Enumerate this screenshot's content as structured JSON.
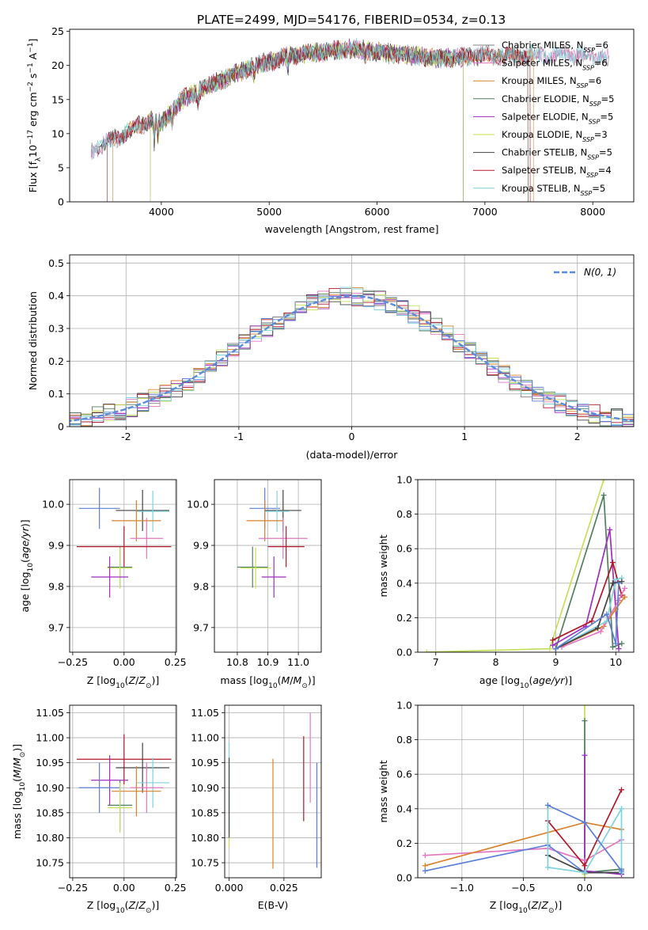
{
  "figure_title": "PLATE=2499, MJD=54176, FIBERID=0534, z=0.13",
  "colors": {
    "Chabrier MILES": "#808080",
    "Salpeter MILES": "#e377c2",
    "Kroupa MILES": "#d9822b",
    "Chabrier ELODIE": "#4f7f5f",
    "Salpeter ELODIE": "#a02cc0",
    "Kroupa ELODIE": "#c5e05a",
    "Chabrier STELIB": "#444444",
    "Salpeter STELIB": "#b2182b",
    "Kroupa STELIB": "#7fd3dc",
    "extra": "#5b7fd9",
    "normal": "#5b8bd9"
  },
  "chart_data": [
    {
      "id": "spectrum",
      "type": "line",
      "xlabel": "wavelength [Angstrom, rest frame]",
      "ylabel": "Flux [f_λ 10^-17 erg cm^-2 s^-1 A^-1]",
      "xlim": [
        3150,
        8380
      ],
      "ylim": [
        0,
        25.3
      ],
      "xticks": [
        4000,
        5000,
        6000,
        7000,
        8000
      ],
      "yticks": [
        0,
        5,
        10,
        15,
        20,
        25
      ],
      "grid": false,
      "legend_position": "right",
      "continuum": [
        [
          3350,
          7.5
        ],
        [
          3600,
          9.5
        ],
        [
          3900,
          12.0
        ],
        [
          4000,
          11.5
        ],
        [
          4200,
          15.0
        ],
        [
          4500,
          17.5
        ],
        [
          4800,
          19.5
        ],
        [
          5000,
          20.5
        ],
        [
          5200,
          21.5
        ],
        [
          5500,
          22.0
        ],
        [
          5800,
          22.5
        ],
        [
          6000,
          22.0
        ],
        [
          6300,
          21.5
        ],
        [
          6600,
          21.0
        ],
        [
          7000,
          21.5
        ],
        [
          7500,
          21.5
        ],
        [
          8000,
          21.5
        ],
        [
          8150,
          21.0
        ]
      ],
      "series": [
        {
          "name": "Chabrier MILES, N_SSP=6",
          "color_key": "Chabrier MILES",
          "start": 3350,
          "end": 8150
        },
        {
          "name": "Salpeter MILES, N_SSP=6",
          "color_key": "Salpeter MILES",
          "start": 3350,
          "end": 8150
        },
        {
          "name": "Kroupa MILES, N_SSP=6",
          "color_key": "Kroupa MILES",
          "start": 3550,
          "end": 7450
        },
        {
          "name": "Chabrier ELODIE, N_SSP=5",
          "color_key": "Chabrier ELODIE",
          "start": 3900,
          "end": 6800
        },
        {
          "name": "Salpeter ELODIE, N_SSP=5",
          "color_key": "Salpeter ELODIE",
          "start": 3900,
          "end": 6800
        },
        {
          "name": "Kroupa ELODIE, N_SSP=3",
          "color_key": "Kroupa ELODIE",
          "start": 3900,
          "end": 6800
        },
        {
          "name": "Chabrier STELIB, N_SSP=5",
          "color_key": "Chabrier STELIB",
          "start": 3400,
          "end": 7400
        },
        {
          "name": "Salpeter STELIB, N_SSP=4",
          "color_key": "Salpeter STELIB",
          "start": 3500,
          "end": 7420
        },
        {
          "name": "Kroupa STELIB, N_SSP=5",
          "color_key": "Kroupa STELIB",
          "start": 3350,
          "end": 8150
        }
      ]
    },
    {
      "id": "residuals",
      "type": "histogram",
      "xlabel": "(data-model)/error",
      "ylabel": "Normed distribution",
      "xlim": [
        -2.5,
        2.5
      ],
      "ylim": [
        0,
        0.525
      ],
      "xticks": [
        -2,
        -1,
        0,
        1,
        2
      ],
      "yticks": [
        0.0,
        0.1,
        0.2,
        0.3,
        0.4,
        0.5
      ],
      "grid": true,
      "legend_position": "upper right",
      "legend": "N(0, 1)",
      "bin_width": 0.1,
      "series_colors": [
        "Chabrier MILES",
        "Salpeter MILES",
        "Kroupa MILES",
        "Chabrier ELODIE",
        "Salpeter ELODIE",
        "Kroupa ELODIE",
        "Chabrier STELIB",
        "Salpeter STELIB",
        "Kroupa STELIB",
        "extra"
      ]
    },
    {
      "id": "age-vs-Z",
      "type": "errorbar",
      "xlabel": "Z [log10(Z/Z⊙)]",
      "ylabel": "age [log10(age/yr)]",
      "xlim": [
        -0.265,
        0.255
      ],
      "ylim": [
        9.64,
        10.06
      ],
      "xticks": [
        -0.25,
        0.0,
        0.25
      ],
      "xticklabels": [
        "−0.25",
        "0.00",
        "0.25"
      ],
      "yticks": [
        9.7,
        9.8,
        9.9,
        10.0
      ],
      "yticklabels": [
        "9.7",
        "9.8",
        "9.9",
        "10.0"
      ],
      "grid": true,
      "points": [
        {
          "c": "extra",
          "x": -0.12,
          "xe": 0.1,
          "y": 9.99,
          "ye": 0.05
        },
        {
          "c": "Chabrier STELIB",
          "x": 0.09,
          "xe": 0.13,
          "y": 9.985,
          "ye": 0.05
        },
        {
          "c": "Kroupa STELIB",
          "x": 0.14,
          "xe": 0.08,
          "y": 9.983,
          "ye": 0.05
        },
        {
          "c": "Kroupa MILES",
          "x": 0.06,
          "xe": 0.12,
          "y": 9.96,
          "ye": 0.05
        },
        {
          "c": "Salpeter MILES",
          "x": 0.11,
          "xe": 0.08,
          "y": 9.917,
          "ye": 0.05
        },
        {
          "c": "Salpeter STELIB",
          "x": 0.0,
          "xe": 0.23,
          "y": 9.897,
          "ye": 0.05
        },
        {
          "c": "Chabrier ELODIE",
          "x": -0.02,
          "xe": 0.06,
          "y": 9.847,
          "ye": 0.05
        },
        {
          "c": "Kroupa ELODIE",
          "x": -0.02,
          "xe": 0.06,
          "y": 9.845,
          "ye": 0.05
        },
        {
          "c": "Salpeter ELODIE",
          "x": -0.07,
          "xe": 0.09,
          "y": 9.823,
          "ye": 0.05
        }
      ]
    },
    {
      "id": "age-vs-mass",
      "type": "errorbar",
      "xlabel": "mass [log10(M/M⊙)]",
      "xlim": [
        10.725,
        11.075
      ],
      "ylim": [
        9.64,
        10.06
      ],
      "xticks": [
        10.8,
        10.9,
        11.0
      ],
      "xticklabels": [
        "10.8",
        "10.9",
        "11.0"
      ],
      "yticks": [
        9.7,
        9.8,
        9.9,
        10.0
      ],
      "yticklabels": [
        "9.7",
        "9.8",
        "9.9",
        "10.0"
      ],
      "grid": true,
      "points": [
        {
          "c": "extra",
          "x": 10.89,
          "xe": 0.05,
          "y": 9.99,
          "ye": 0.05
        },
        {
          "c": "Chabrier STELIB",
          "x": 10.95,
          "xe": 0.06,
          "y": 9.985,
          "ye": 0.05
        },
        {
          "c": "Kroupa STELIB",
          "x": 10.93,
          "xe": 0.04,
          "y": 9.983,
          "ye": 0.05
        },
        {
          "c": "Kroupa MILES",
          "x": 10.89,
          "xe": 0.06,
          "y": 9.96,
          "ye": 0.05
        },
        {
          "c": "Salpeter MILES",
          "x": 10.95,
          "xe": 0.08,
          "y": 9.917,
          "ye": 0.05
        },
        {
          "c": "Salpeter STELIB",
          "x": 10.96,
          "xe": 0.06,
          "y": 9.897,
          "ye": 0.05
        },
        {
          "c": "Chabrier ELODIE",
          "x": 10.85,
          "xe": 0.05,
          "y": 9.847,
          "ye": 0.05
        },
        {
          "c": "Kroupa ELODIE",
          "x": 10.86,
          "xe": 0.05,
          "y": 9.845,
          "ye": 0.05
        },
        {
          "c": "Salpeter ELODIE",
          "x": 10.92,
          "xe": 0.04,
          "y": 9.823,
          "ye": 0.05
        }
      ]
    },
    {
      "id": "weight-vs-age",
      "type": "line",
      "xlabel": "age [log10(age/yr)]",
      "ylabel": "mass weight",
      "xlim": [
        6.7,
        10.3
      ],
      "ylim": [
        0,
        1.0
      ],
      "xticks": [
        7,
        8,
        9,
        10
      ],
      "xticklabels": [
        "7",
        "8",
        "9",
        "10"
      ],
      "yticks": [
        0.0,
        0.2,
        0.4,
        0.6,
        0.8,
        1.0
      ],
      "yticklabels": [
        "0.0",
        "0.2",
        "0.4",
        "0.6",
        "0.8",
        "1.0"
      ],
      "grid": true,
      "series": [
        {
          "c": "Kroupa ELODIE",
          "x": [
            6.85,
            8.9,
            9.8
          ],
          "y": [
            0.0,
            0.02,
            1.0
          ]
        },
        {
          "c": "Chabrier ELODIE",
          "x": [
            9.0,
            9.8,
            9.95,
            10.1
          ],
          "y": [
            0.02,
            0.91,
            0.03,
            0.05
          ]
        },
        {
          "c": "Salpeter ELODIE",
          "x": [
            8.95,
            9.5,
            9.9,
            10.05
          ],
          "y": [
            0.04,
            0.15,
            0.71,
            0.02
          ]
        },
        {
          "c": "Salpeter STELIB",
          "x": [
            8.95,
            9.6,
            9.95,
            10.1
          ],
          "y": [
            0.07,
            0.18,
            0.52,
            0.33
          ]
        },
        {
          "c": "Kroupa MILES",
          "x": [
            9.0,
            9.8,
            10.0,
            10.15
          ],
          "y": [
            0.02,
            0.15,
            0.25,
            0.32
          ]
        },
        {
          "c": "Salpeter MILES",
          "x": [
            9.1,
            9.75,
            10.05,
            10.15
          ],
          "y": [
            0.03,
            0.12,
            0.3,
            0.37
          ]
        },
        {
          "c": "Kroupa STELIB",
          "x": [
            9.0,
            9.85,
            10.0,
            10.1
          ],
          "y": [
            0.02,
            0.18,
            0.42,
            0.43
          ]
        },
        {
          "c": "Chabrier STELIB",
          "x": [
            9.0,
            9.7,
            9.95,
            10.1
          ],
          "y": [
            0.02,
            0.14,
            0.4,
            0.41
          ]
        },
        {
          "c": "extra",
          "x": [
            9.0,
            9.85,
            10.0,
            10.05
          ],
          "y": [
            0.02,
            0.22,
            0.05,
            0.4
          ]
        }
      ]
    },
    {
      "id": "mass-vs-Z",
      "type": "errorbar",
      "xlabel": "Z [log10(Z/Z⊙)]",
      "ylabel": "mass [log10(M/M⊙)]",
      "xlim": [
        -0.265,
        0.255
      ],
      "ylim": [
        10.72,
        11.065
      ],
      "xticks": [
        -0.25,
        0.0,
        0.25
      ],
      "xticklabels": [
        "−0.25",
        "0.00",
        "0.25"
      ],
      "yticks": [
        10.75,
        10.8,
        10.85,
        10.9,
        10.95,
        11.0,
        11.05
      ],
      "yticklabels": [
        "10.75",
        "10.80",
        "10.85",
        "10.90",
        "10.95",
        "11.00",
        "11.05"
      ],
      "grid": true,
      "points": [
        {
          "c": "Salpeter STELIB",
          "x": 0.0,
          "xe": 0.23,
          "y": 10.957,
          "ye": 0.05
        },
        {
          "c": "Chabrier STELIB",
          "x": 0.09,
          "xe": 0.13,
          "y": 10.94,
          "ye": 0.05
        },
        {
          "c": "Salpeter ELODIE",
          "x": -0.07,
          "xe": 0.09,
          "y": 10.915,
          "ye": 0.05
        },
        {
          "c": "Kroupa STELIB",
          "x": 0.14,
          "xe": 0.08,
          "y": 10.91,
          "ye": 0.05
        },
        {
          "c": "extra",
          "x": -0.12,
          "xe": 0.1,
          "y": 10.9,
          "ye": 0.05
        },
        {
          "c": "Salpeter MILES",
          "x": 0.11,
          "xe": 0.08,
          "y": 10.9,
          "ye": 0.05
        },
        {
          "c": "Kroupa MILES",
          "x": 0.06,
          "xe": 0.12,
          "y": 10.893,
          "ye": 0.05
        },
        {
          "c": "Chabrier ELODIE",
          "x": -0.02,
          "xe": 0.06,
          "y": 10.865,
          "ye": 0.05
        },
        {
          "c": "Kroupa ELODIE",
          "x": -0.02,
          "xe": 0.06,
          "y": 10.86,
          "ye": 0.05
        }
      ]
    },
    {
      "id": "mass-vs-EBV",
      "type": "errorbar",
      "xlabel": "E(B-V)",
      "xlim": [
        -0.002,
        0.042
      ],
      "ylim": [
        10.72,
        11.065
      ],
      "xticks": [
        0.0,
        0.025
      ],
      "xticklabels": [
        "0.000",
        "0.025"
      ],
      "yticks": [
        10.75,
        10.8,
        10.85,
        10.9,
        10.95,
        11.0,
        11.05
      ],
      "yticklabels": [
        "10.75",
        "10.80",
        "10.85",
        "10.90",
        "10.95",
        "11.00",
        "11.05"
      ],
      "grid": true,
      "points": [
        {
          "c": "Kroupa STELIB",
          "x": 0.0,
          "xe": 0.0,
          "y": 10.9,
          "ye": 0.09
        },
        {
          "c": "Kroupa ELODIE",
          "x": 0.0,
          "xe": 0.0,
          "y": 10.86,
          "ye": 0.08
        },
        {
          "c": "Chabrier STELIB",
          "x": 0.0,
          "xe": 0.0,
          "y": 10.88,
          "ye": 0.08
        },
        {
          "c": "Kroupa MILES",
          "x": 0.02,
          "xe": 0.0,
          "y": 10.848,
          "ye": 0.11
        },
        {
          "c": "Salpeter STELIB",
          "x": 0.034,
          "xe": 0.0,
          "y": 10.918,
          "ye": 0.085
        },
        {
          "c": "Salpeter MILES",
          "x": 0.037,
          "xe": 0.0,
          "y": 10.96,
          "ye": 0.09
        },
        {
          "c": "extra",
          "x": 0.04,
          "xe": 0.0,
          "y": 10.845,
          "ye": 0.105
        }
      ]
    },
    {
      "id": "weight-vs-Z",
      "type": "line",
      "xlabel": "Z [log10(Z/Z⊙)]",
      "ylabel": "mass weight",
      "xlim": [
        -1.36,
        0.4
      ],
      "ylim": [
        0,
        1.0
      ],
      "xticks": [
        -1.0,
        -0.5,
        0.0
      ],
      "xticklabels": [
        "−1.0",
        "−0.5",
        "0.0"
      ],
      "yticks": [
        0.0,
        0.2,
        0.4,
        0.6,
        0.8,
        1.0
      ],
      "yticklabels": [
        "0.0",
        "0.2",
        "0.4",
        "0.6",
        "0.8",
        "1.0"
      ],
      "grid": true,
      "series": [
        {
          "c": "Kroupa ELODIE",
          "x": [
            0.0,
            0.0,
            0.0
          ],
          "y": [
            0.0,
            1.0,
            0.02
          ]
        },
        {
          "c": "Chabrier ELODIE",
          "x": [
            0.0,
            0.0,
            0.3
          ],
          "y": [
            0.91,
            0.03,
            0.05
          ]
        },
        {
          "c": "Salpeter ELODIE",
          "x": [
            0.0,
            0.0,
            0.3
          ],
          "y": [
            0.71,
            0.04,
            0.02
          ]
        },
        {
          "c": "Salpeter MILES",
          "x": [
            -1.3,
            -0.3,
            0.0,
            0.3
          ],
          "y": [
            0.13,
            0.17,
            0.1,
            0.22
          ]
        },
        {
          "c": "Kroupa MILES",
          "x": [
            -1.3,
            0.0,
            0.3
          ],
          "y": [
            0.07,
            0.32,
            0.28
          ]
        },
        {
          "c": "extra",
          "x": [
            -1.3,
            -0.3,
            0.0,
            0.3
          ],
          "y": [
            0.04,
            0.19,
            0.03,
            0.03
          ]
        },
        {
          "c": "Salpeter STELIB",
          "x": [
            -0.3,
            0.0,
            0.3
          ],
          "y": [
            0.33,
            0.07,
            0.51
          ]
        },
        {
          "c": "Chabrier STELIB",
          "x": [
            -0.3,
            0.0,
            0.3
          ],
          "y": [
            0.13,
            0.03,
            0.03
          ]
        },
        {
          "c": "Kroupa STELIB",
          "x": [
            -0.3,
            -0.3,
            0.0,
            0.3,
            0.3
          ],
          "y": [
            0.42,
            0.06,
            0.03,
            0.4,
            0.03
          ]
        },
        {
          "c": "extra",
          "x": [
            -0.3,
            0.0,
            0.3
          ],
          "y": [
            0.42,
            0.32,
            0.04
          ]
        }
      ]
    }
  ]
}
